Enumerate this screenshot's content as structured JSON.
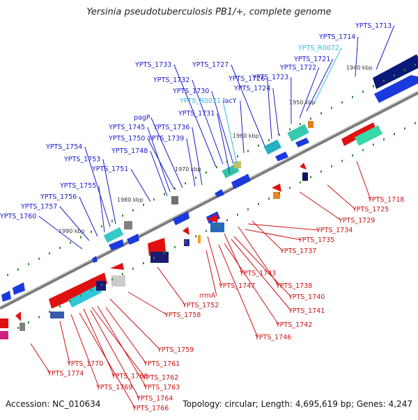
{
  "title": "Yersinia pseudotuberculosis PB1/+, complete genome",
  "footer": {
    "accession": "Accession: NC_010634",
    "summary": "Topology: circular; Length: 4,695,619 bp; Genes: 4,247"
  },
  "colors": {
    "forward_label": "#1a1acc",
    "reverse_label": "#cc1111",
    "rna_label": "#33bbdd",
    "backbone": "#888888",
    "tick": "#2e8b2e"
  },
  "kbp_ticks": [
    "1940 kbp",
    "1950 kbp",
    "1960 kbp",
    "1970 kbp",
    "1980 kbp",
    "1990 kbp"
  ],
  "forward_labels": [
    "YPTS_1713",
    "YPTS_1714",
    "YPTS_R0072",
    "YPTS_1721",
    "YPTS_1722",
    "YPTS_1723",
    "YPTS_1724",
    "YPTS_1726",
    "YPTS_1727",
    "YPTS_1733",
    "YPTS_1732",
    "YPTS_1730",
    "YPTS_R0071",
    "lacY",
    "YPTS_1731",
    "pagP",
    "YPTS_1736",
    "YPTS_1745",
    "YPTS_1750",
    "YPTS_1739",
    "YPTS_1748",
    "YPTS_1754",
    "YPTS_1753",
    "YPTS_1751",
    "YPTS_1755",
    "YPTS_1756",
    "YPTS_1757",
    "YPTS_1760"
  ],
  "reverse_labels": [
    "YPTS_1718",
    "YPTS_1725",
    "YPTS_1729",
    "YPTS_1734",
    "YPTS_1735",
    "YPTS_1737",
    "YPTS_1743",
    "YPTS_1738",
    "YPTS_1747",
    "YPTS_1740",
    "rrmA",
    "YPTS_1741",
    "YPTS_1752",
    "YPTS_1742",
    "YPTS_1758",
    "YPTS_1746",
    "YPTS_1759",
    "YPTS_1761",
    "YPTS_1770",
    "YPTS_1762",
    "YPTS_1774",
    "YPTS_1768",
    "YPTS_1763",
    "YPTS_1769",
    "YPTS_1764",
    "YPTS_1766"
  ]
}
